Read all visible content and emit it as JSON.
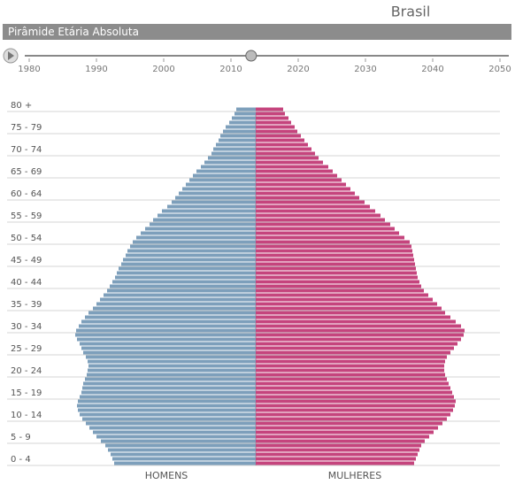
{
  "title": "Brasil",
  "subtitle": "Pirâmide Etária Absoluta",
  "timeline": {
    "xlim": [
      1980,
      2050
    ],
    "xticks": [
      1980,
      1990,
      2000,
      2010,
      2020,
      2030,
      2040,
      2050
    ],
    "value": 2013
  },
  "chart_data": {
    "type": "pyramid",
    "categories": [
      "0 - 4",
      null,
      null,
      null,
      null,
      "5 - 9",
      null,
      null,
      null,
      null,
      "10 - 14",
      null,
      null,
      null,
      null,
      "15 - 19",
      null,
      null,
      null,
      null,
      "20 - 24",
      null,
      null,
      null,
      null,
      "25 - 29",
      null,
      null,
      null,
      null,
      "30 - 34",
      null,
      null,
      null,
      null,
      "35 - 39",
      null,
      null,
      null,
      null,
      "40 - 44",
      null,
      null,
      null,
      null,
      "45 - 49",
      null,
      null,
      null,
      null,
      "50 - 54",
      null,
      null,
      null,
      null,
      "55 - 59",
      null,
      null,
      null,
      null,
      "60 - 64",
      null,
      null,
      null,
      null,
      "65 - 69",
      null,
      null,
      null,
      null,
      "70 - 74",
      null,
      null,
      null,
      null,
      "75 - 79",
      null,
      null,
      null,
      null,
      "80 +"
    ],
    "xlim": [
      0,
      250
    ],
    "series": [
      {
        "name": "HOMENS",
        "color": "#7d9fbb",
        "values": [
          160,
          162,
          164,
          167,
          170,
          175,
          180,
          184,
          188,
          192,
          196,
          199,
          201,
          202,
          201,
          199,
          197,
          196,
          195,
          193,
          191,
          190,
          189,
          190,
          192,
          195,
          197,
          199,
          202,
          204,
          203,
          200,
          197,
          193,
          189,
          184,
          180,
          176,
          172,
          168,
          165,
          162,
          159,
          157,
          155,
          152,
          150,
          147,
          145,
          142,
          139,
          135,
          130,
          125,
          120,
          116,
          111,
          106,
          100,
          95,
          91,
          87,
          83,
          79,
          75,
          71,
          67,
          62,
          58,
          54,
          50,
          48,
          45,
          42,
          40,
          37,
          34,
          30,
          27,
          24,
          22
        ]
      },
      {
        "name": "MULHERES",
        "color": "#c5447d",
        "values": [
          179,
          181,
          183,
          185,
          187,
          191,
          196,
          201,
          206,
          211,
          216,
          220,
          223,
          225,
          226,
          224,
          222,
          220,
          218,
          216,
          214,
          213,
          213,
          214,
          216,
          220,
          224,
          228,
          232,
          235,
          236,
          232,
          226,
          220,
          214,
          210,
          205,
          200,
          195,
          190,
          187,
          185,
          183,
          182,
          181,
          180,
          179,
          178,
          177,
          176,
          174,
          168,
          162,
          157,
          152,
          146,
          141,
          135,
          129,
          123,
          117,
          112,
          107,
          102,
          97,
          92,
          87,
          82,
          76,
          71,
          67,
          63,
          59,
          55,
          51,
          47,
          44,
          40,
          37,
          33,
          31
        ]
      }
    ]
  }
}
